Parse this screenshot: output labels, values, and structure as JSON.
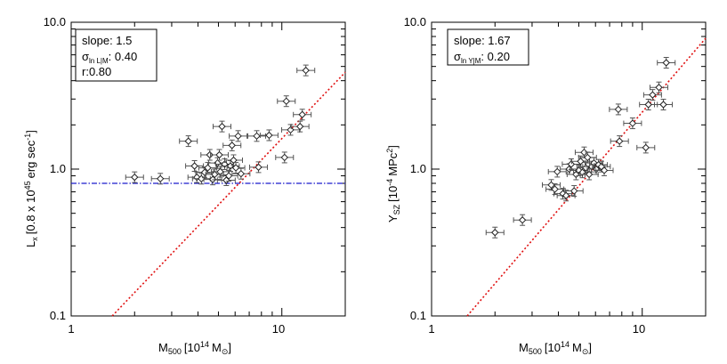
{
  "chart_data": [
    {
      "type": "scatter",
      "xlabel": "M",
      "xlabel_sub": "500",
      "xlabel_unit": "[10",
      "xlabel_exp": "14",
      "xlabel_msun": "M",
      "xlabel_end": "]",
      "ylabel": "L",
      "ylabel_sub": "x",
      "ylabel_unit": "[0.8 x 10",
      "ylabel_exp1": "45",
      "ylabel_mid": "erg sec",
      "ylabel_exp2": "-1",
      "ylabel_end": "]",
      "xscale": "log",
      "yscale": "log",
      "xlim": [
        1,
        20
      ],
      "ylim": [
        0.1,
        10
      ],
      "xticks": [
        "1",
        "10"
      ],
      "yticks": [
        "0.1",
        "1.0",
        "10.0"
      ],
      "legend": {
        "slope": "slope: 1.5",
        "sigma_sym": "σ",
        "sigma_sub": "ln L|M",
        "sigma_val": ": 0.40",
        "r": "r:0.80"
      },
      "fit_line": {
        "slope": 1.5,
        "x0": 6.0,
        "y0": 0.75,
        "color": "#e01010"
      },
      "threshold_line": {
        "y": 0.8,
        "color": "#1a1acc"
      },
      "points": [
        {
          "x": 2.0,
          "y": 0.88
        },
        {
          "x": 2.65,
          "y": 0.86
        },
        {
          "x": 3.6,
          "y": 1.55
        },
        {
          "x": 3.85,
          "y": 1.05
        },
        {
          "x": 3.95,
          "y": 0.88
        },
        {
          "x": 4.15,
          "y": 0.86
        },
        {
          "x": 4.3,
          "y": 0.95
        },
        {
          "x": 4.45,
          "y": 1.02
        },
        {
          "x": 4.55,
          "y": 1.25
        },
        {
          "x": 4.7,
          "y": 0.85
        },
        {
          "x": 4.8,
          "y": 0.92
        },
        {
          "x": 4.95,
          "y": 1.1
        },
        {
          "x": 5.05,
          "y": 1.25
        },
        {
          "x": 5.1,
          "y": 0.96
        },
        {
          "x": 5.2,
          "y": 1.95
        },
        {
          "x": 5.35,
          "y": 1.08
        },
        {
          "x": 5.45,
          "y": 0.84
        },
        {
          "x": 5.6,
          "y": 0.9
        },
        {
          "x": 5.7,
          "y": 1.05
        },
        {
          "x": 5.8,
          "y": 1.45
        },
        {
          "x": 5.9,
          "y": 1.15
        },
        {
          "x": 6.05,
          "y": 1.02
        },
        {
          "x": 6.2,
          "y": 1.68
        },
        {
          "x": 6.4,
          "y": 0.93
        },
        {
          "x": 7.6,
          "y": 1.68
        },
        {
          "x": 7.75,
          "y": 1.03
        },
        {
          "x": 8.7,
          "y": 1.7
        },
        {
          "x": 10.3,
          "y": 1.2
        },
        {
          "x": 10.5,
          "y": 2.9
        },
        {
          "x": 11.0,
          "y": 1.85
        },
        {
          "x": 12.2,
          "y": 1.95
        },
        {
          "x": 12.5,
          "y": 2.35
        },
        {
          "x": 13.0,
          "y": 4.7
        }
      ]
    },
    {
      "type": "scatter",
      "xlabel": "M",
      "xlabel_sub": "500",
      "xlabel_unit": "[10",
      "xlabel_exp": "14",
      "xlabel_msun": "M",
      "xlabel_end": "]",
      "ylabel": "Y",
      "ylabel_sub": "SZ",
      "ylabel_unit": "[10",
      "ylabel_exp1": "-4",
      "ylabel_mid": "MPc",
      "ylabel_exp2": "2",
      "ylabel_end": "]",
      "xscale": "log",
      "yscale": "log",
      "xlim": [
        1,
        20
      ],
      "ylim": [
        0.1,
        10
      ],
      "xticks": [
        "1",
        "10"
      ],
      "yticks": [
        "0.1",
        "1.0",
        "10.0"
      ],
      "legend": {
        "slope": "slope: 1.67",
        "sigma_sym": "σ",
        "sigma_sub": "ln Y|M",
        "sigma_val": ": 0.20",
        "r": ""
      },
      "fit_line": {
        "slope": 1.67,
        "x0": 5.5,
        "y0": 0.9,
        "color": "#e01010"
      },
      "points": [
        {
          "x": 2.0,
          "y": 0.37
        },
        {
          "x": 2.7,
          "y": 0.45
        },
        {
          "x": 3.7,
          "y": 0.78
        },
        {
          "x": 3.85,
          "y": 0.73
        },
        {
          "x": 3.95,
          "y": 0.96
        },
        {
          "x": 4.2,
          "y": 0.68
        },
        {
          "x": 4.35,
          "y": 0.66
        },
        {
          "x": 4.5,
          "y": 1.0
        },
        {
          "x": 4.6,
          "y": 1.08
        },
        {
          "x": 4.75,
          "y": 0.71
        },
        {
          "x": 4.85,
          "y": 0.92
        },
        {
          "x": 5.0,
          "y": 0.98
        },
        {
          "x": 5.1,
          "y": 1.13
        },
        {
          "x": 5.2,
          "y": 0.95
        },
        {
          "x": 5.3,
          "y": 1.3
        },
        {
          "x": 5.4,
          "y": 1.02
        },
        {
          "x": 5.5,
          "y": 1.2
        },
        {
          "x": 5.6,
          "y": 0.92
        },
        {
          "x": 5.75,
          "y": 1.04
        },
        {
          "x": 5.9,
          "y": 1.1
        },
        {
          "x": 6.05,
          "y": 1.0
        },
        {
          "x": 6.2,
          "y": 1.07
        },
        {
          "x": 6.4,
          "y": 1.04
        },
        {
          "x": 6.6,
          "y": 0.98
        },
        {
          "x": 7.7,
          "y": 2.55
        },
        {
          "x": 7.8,
          "y": 1.55
        },
        {
          "x": 9.0,
          "y": 2.05
        },
        {
          "x": 10.4,
          "y": 1.4
        },
        {
          "x": 10.7,
          "y": 2.75
        },
        {
          "x": 11.2,
          "y": 3.2
        },
        {
          "x": 12.0,
          "y": 3.6
        },
        {
          "x": 12.6,
          "y": 2.75
        },
        {
          "x": 13.0,
          "y": 5.3
        }
      ]
    }
  ]
}
